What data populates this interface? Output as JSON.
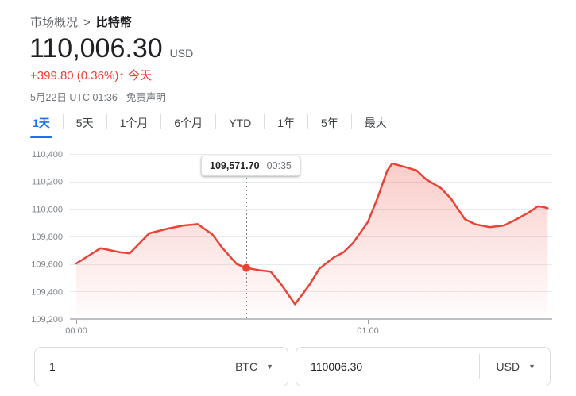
{
  "header": {
    "breadcrumb": {
      "parent": "市场概况",
      "separator": ">",
      "current": "比特幣"
    },
    "price": "110,006.30",
    "price_currency": "USD",
    "change": "+399.80 (0.36%)",
    "change_arrow": "↑",
    "change_period": "今天",
    "datetime": "5月22日 UTC 01:36 ·",
    "disclaimer_link": "免责声明"
  },
  "tabs": [
    {
      "key": "1d",
      "label": "1天",
      "active": true
    },
    {
      "key": "5d",
      "label": "5天",
      "active": false
    },
    {
      "key": "1m",
      "label": "1个月",
      "active": false
    },
    {
      "key": "6m",
      "label": "6个月",
      "active": false
    },
    {
      "key": "ytd",
      "label": "YTD",
      "active": false
    },
    {
      "key": "1y",
      "label": "1年",
      "active": false
    },
    {
      "key": "5y",
      "label": "5年",
      "active": false
    },
    {
      "key": "max",
      "label": "最大",
      "active": false
    }
  ],
  "chart_data": {
    "type": "area",
    "description": "比特幣 BTC/USD 1天 价格走势",
    "x_unit": "minutes after 00:00 UTC",
    "xlabel": "",
    "ylabel": "",
    "ylim": [
      109200,
      110400
    ],
    "grid": true,
    "line_color": "#EA4335",
    "x_ticks": [
      {
        "minute": 0,
        "label": "00:00"
      },
      {
        "minute": 60,
        "label": "01:00"
      }
    ],
    "y_ticks": [
      {
        "value": 109200,
        "label": "109,200"
      },
      {
        "value": 109400,
        "label": "109,400"
      },
      {
        "value": 109600,
        "label": "109,600"
      },
      {
        "value": 109800,
        "label": "109,800"
      },
      {
        "value": 110000,
        "label": "110,000"
      },
      {
        "value": 110200,
        "label": "110,200"
      },
      {
        "value": 110400,
        "label": "110,400"
      }
    ],
    "points": [
      [
        0,
        109604
      ],
      [
        5,
        109715
      ],
      [
        9,
        109685
      ],
      [
        11,
        109678
      ],
      [
        15,
        109823
      ],
      [
        19,
        109858
      ],
      [
        22,
        109880
      ],
      [
        25,
        109890
      ],
      [
        28,
        109815
      ],
      [
        30,
        109720
      ],
      [
        33,
        109600
      ],
      [
        35,
        109571.7
      ],
      [
        38,
        109553
      ],
      [
        40,
        109545
      ],
      [
        42,
        109460
      ],
      [
        45,
        109308
      ],
      [
        48,
        109450
      ],
      [
        50,
        109565
      ],
      [
        53,
        109648
      ],
      [
        55,
        109685
      ],
      [
        57,
        109755
      ],
      [
        60,
        109905
      ],
      [
        62,
        110080
      ],
      [
        64,
        110280
      ],
      [
        65,
        110330
      ],
      [
        67,
        110312
      ],
      [
        70,
        110280
      ],
      [
        72,
        110215
      ],
      [
        75,
        110152
      ],
      [
        77,
        110080
      ],
      [
        80,
        109925
      ],
      [
        82,
        109890
      ],
      [
        85,
        109868
      ],
      [
        88,
        109880
      ],
      [
        90,
        109915
      ],
      [
        93,
        109972
      ],
      [
        95,
        110020
      ],
      [
        96,
        110015
      ],
      [
        97,
        110006
      ]
    ],
    "marker": {
      "minute": 35,
      "value": 109571.7,
      "tooltip_value": "109,571.70",
      "tooltip_time": "00:35"
    }
  },
  "converter": {
    "from": {
      "value": "1",
      "currency": "BTC"
    },
    "to": {
      "value": "110006.30",
      "currency": "USD"
    }
  },
  "colors": {
    "accent_blue": "#1A73E8",
    "up_red": "#EA4335",
    "text_dark": "#202124",
    "text_gray": "#5F6368",
    "border": "#DADCE0",
    "gridline": "#E8EAED",
    "axis_baseline": "#BDC1C6"
  }
}
